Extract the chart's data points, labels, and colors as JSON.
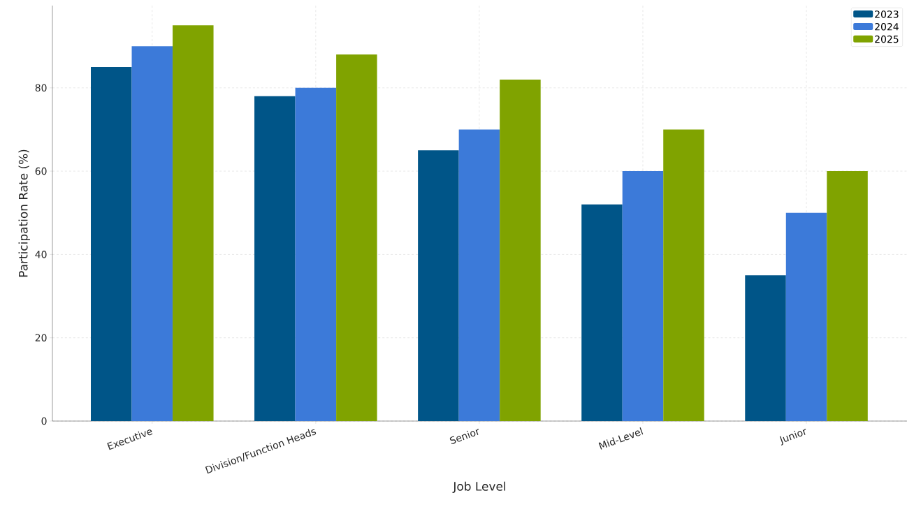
{
  "chart_data": {
    "type": "bar",
    "xlabel": "Job Level",
    "ylabel": "Participation Rate (%)",
    "categories": [
      "Executive",
      "Division/Function Heads",
      "Senior",
      "Mid-Level",
      "Junior"
    ],
    "series": [
      {
        "name": "2023",
        "color": "#005588",
        "values": [
          85,
          78,
          65,
          52,
          35
        ]
      },
      {
        "name": "2024",
        "color": "#3c7ad9",
        "values": [
          90,
          80,
          70,
          60,
          50
        ]
      },
      {
        "name": "2025",
        "color": "#80a300",
        "values": [
          95,
          88,
          82,
          70,
          60
        ]
      }
    ],
    "ylim": [
      0,
      99.75
    ],
    "yticks": [
      0,
      20,
      40,
      60,
      80
    ],
    "grid": true,
    "legend": "top right"
  }
}
